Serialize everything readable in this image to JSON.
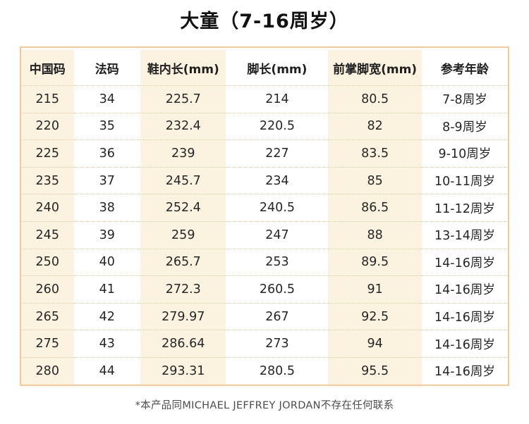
{
  "title": "大童（7-16周岁）",
  "footnote": "*本产品同MICHAEL JEFFREY JORDAN不存在任何联系",
  "chart_data": {
    "type": "table",
    "title": "大童（7-16周岁）",
    "columns": [
      "中国码",
      "法码",
      "鞋内长(mm)",
      "脚长(mm)",
      "前掌脚宽(mm)",
      "参考年龄"
    ],
    "rows": [
      [
        "215",
        "34",
        "225.7",
        "214",
        "80.5",
        "7-8周岁"
      ],
      [
        "220",
        "35",
        "232.4",
        "220.5",
        "82",
        "8-9周岁"
      ],
      [
        "225",
        "36",
        "239",
        "227",
        "83.5",
        "9-10周岁"
      ],
      [
        "235",
        "37",
        "245.7",
        "234",
        "85",
        "10-11周岁"
      ],
      [
        "240",
        "38",
        "252.4",
        "240.5",
        "86.5",
        "11-12周岁"
      ],
      [
        "245",
        "39",
        "259",
        "247",
        "88",
        "13-14周岁"
      ],
      [
        "250",
        "40",
        "265.7",
        "253",
        "89.5",
        "14-16周岁"
      ],
      [
        "260",
        "41",
        "272.3",
        "260.5",
        "91",
        "14-16周岁"
      ],
      [
        "265",
        "42",
        "279.97",
        "267",
        "92.5",
        "14-16周岁"
      ],
      [
        "275",
        "43",
        "286.64",
        "273",
        "94",
        "14-16周岁"
      ],
      [
        "280",
        "44",
        "293.31",
        "280.5",
        "95.5",
        "14-16周岁"
      ]
    ]
  },
  "colors": {
    "table_border": "#f3c99c",
    "column_band": "#fbf3e0",
    "row_divider": "#e9cda2",
    "title_text": "#121212",
    "cell_text": "#262626",
    "footnote_text": "#4c4c4c",
    "background": "#ffffff"
  }
}
